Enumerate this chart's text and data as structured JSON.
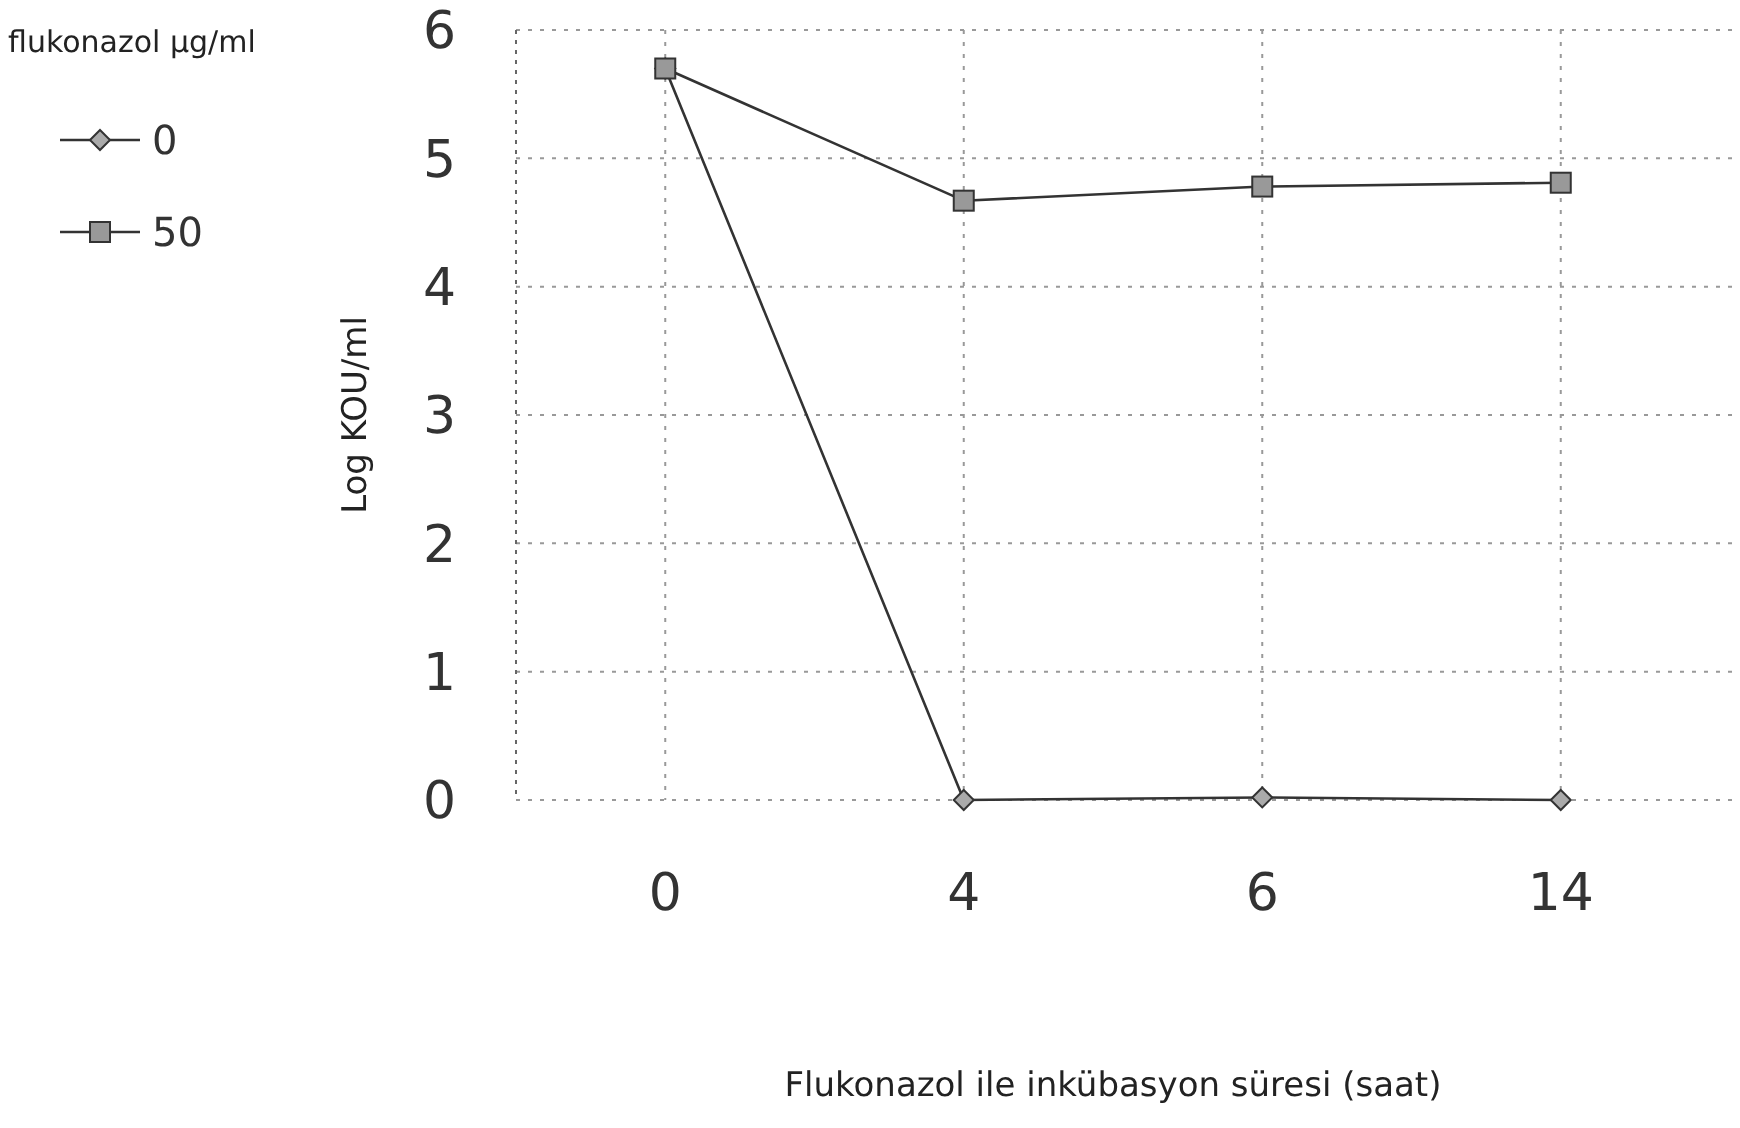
{
  "chart_data": {
    "type": "line",
    "xlabel": "Flukonazol ile inkübasyon süresi (saat)",
    "ylabel": "Log KOU/ml",
    "legend_title": "flukonazol µg/ml",
    "categories": [
      "0",
      "4",
      "6",
      "14"
    ],
    "series": [
      {
        "name": "0",
        "color": "#333333",
        "marker": "diamond",
        "values": [
          5.7,
          0,
          0.02,
          0
        ]
      },
      {
        "name": "50",
        "color": "#333333",
        "marker": "square",
        "values": [
          5.7,
          4.67,
          4.78,
          4.81
        ]
      }
    ],
    "ylim": [
      0,
      6
    ],
    "yticks": [
      0,
      1,
      2,
      3,
      4,
      5,
      6
    ],
    "grid": true,
    "legend": "top left",
    "line_style": "solid"
  }
}
